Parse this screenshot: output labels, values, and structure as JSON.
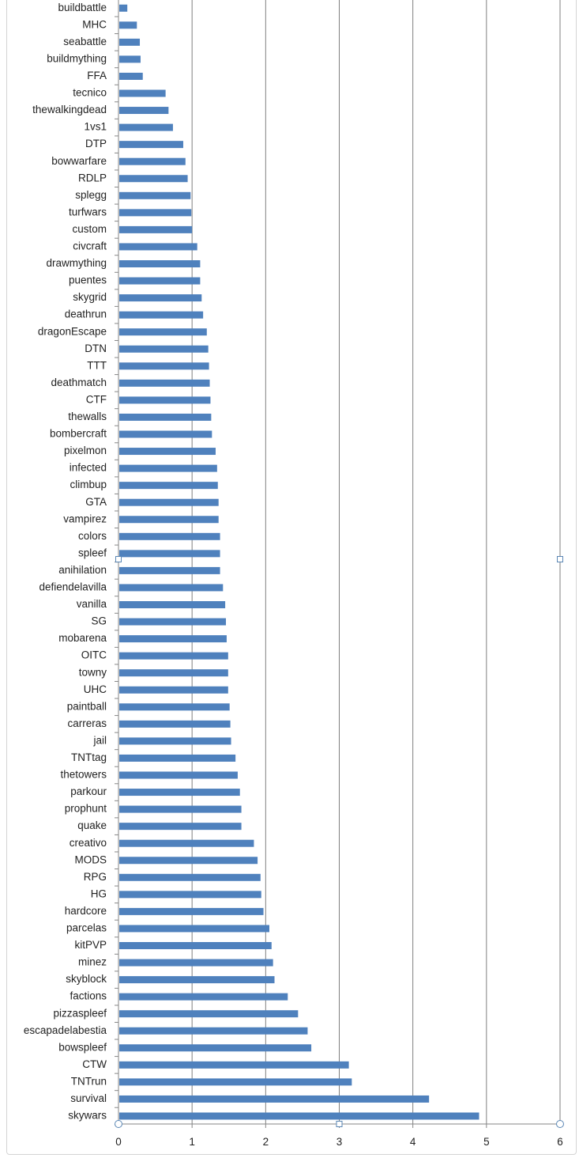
{
  "colors": {
    "bar": "#4f81bd",
    "gridline": "#7f7f7f",
    "axis": "#868686",
    "handle_stroke": "#5b87b5",
    "frame_border": "#d4d4d4"
  },
  "chart_data": {
    "type": "bar",
    "orientation": "horizontal",
    "title": "",
    "xlabel": "",
    "ylabel": "",
    "xlim": [
      0,
      6
    ],
    "x_ticks": [
      0,
      1,
      2,
      3,
      4,
      5,
      6
    ],
    "x_tick_labels": [
      "0",
      "1",
      "2",
      "3",
      "4",
      "5",
      "6"
    ],
    "grid": "vertical major gridlines",
    "legend": "none",
    "categories": [
      "skywars",
      "survival",
      "TNTrun",
      "CTW",
      "bowspleef",
      "escapadelabestia",
      "pizzaspleef",
      "factions",
      "skyblock",
      "minez",
      "kitPVP",
      "parcelas",
      "hardcore",
      "HG",
      "RPG",
      "MODS",
      "creativo",
      "quake",
      "prophunt",
      "parkour",
      "thetowers",
      "TNTtag",
      "jail",
      "carreras",
      "paintball",
      "UHC",
      "towny",
      "OITC",
      "mobarena",
      "SG",
      "vanilla",
      "defiendelavilla",
      "anihilation",
      "spleef",
      "colors",
      "vampirez",
      "GTA",
      "climbup",
      "infected",
      "pixelmon",
      "bombercraft",
      "thewalls",
      "CTF",
      "deathmatch",
      "TTT",
      "DTN",
      "dragonEscape",
      "deathrun",
      "skygrid",
      "puentes",
      "drawmything",
      "civcraft",
      "custom",
      "turfwars",
      "splegg",
      "RDLP",
      "bowwarfare",
      "DTP",
      "1vs1",
      "thewalkingdead",
      "tecnico",
      "FFA",
      "buildmything",
      "seabattle",
      "MHC",
      "buildbattle"
    ],
    "values": [
      4.9,
      4.22,
      3.17,
      3.13,
      2.62,
      2.57,
      2.44,
      2.3,
      2.12,
      2.1,
      2.08,
      2.05,
      1.97,
      1.94,
      1.93,
      1.89,
      1.84,
      1.67,
      1.67,
      1.65,
      1.62,
      1.59,
      1.53,
      1.52,
      1.51,
      1.49,
      1.49,
      1.49,
      1.47,
      1.46,
      1.45,
      1.42,
      1.38,
      1.38,
      1.38,
      1.36,
      1.36,
      1.35,
      1.34,
      1.32,
      1.27,
      1.26,
      1.25,
      1.24,
      1.23,
      1.22,
      1.2,
      1.15,
      1.13,
      1.11,
      1.11,
      1.07,
      1.0,
      0.99,
      0.98,
      0.94,
      0.91,
      0.88,
      0.74,
      0.68,
      0.64,
      0.33,
      0.3,
      0.29,
      0.25,
      0.12
    ]
  }
}
